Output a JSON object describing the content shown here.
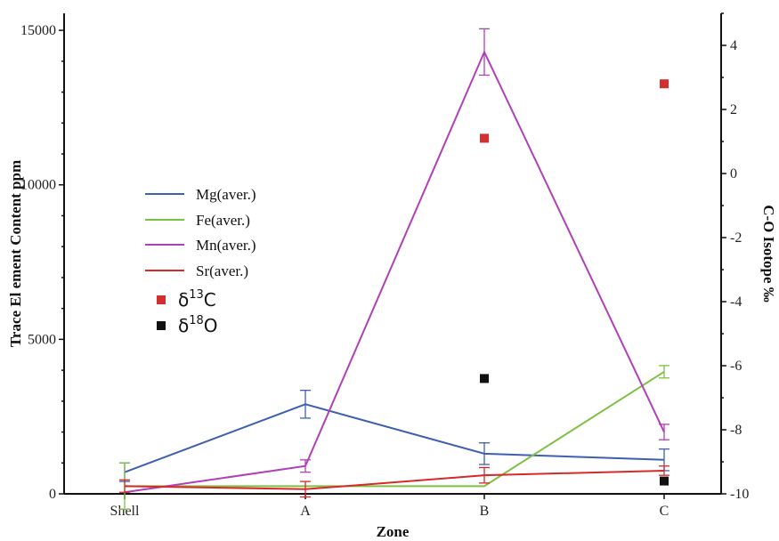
{
  "chart_data": {
    "type": "line",
    "categories": [
      "Shell",
      "A",
      "B",
      "C"
    ],
    "xlabel": "Zone",
    "ylabel": "Trace El ement Content ppm",
    "y2label": "C-O Isotope ‰",
    "ylim": [
      0,
      15000
    ],
    "y2lim": [
      -10,
      5
    ],
    "yticks": [
      "0",
      "5000",
      "10000",
      "15000"
    ],
    "y2ticks": [
      "-10",
      "-8",
      "-6",
      "-4",
      "-2",
      "0",
      "2",
      "4"
    ],
    "legend_position": "left-center",
    "series": [
      {
        "name": "Mg(aver.)",
        "color": "#3f5fb0",
        "values": [
          700,
          2900,
          1300,
          1100
        ],
        "errors": [
          300,
          450,
          350,
          350
        ]
      },
      {
        "name": "Fe(aver.)",
        "color": "#7dc142",
        "values": [
          250,
          250,
          250,
          3950
        ],
        "errors": [
          750,
          0,
          0,
          200
        ]
      },
      {
        "name": "Mn(aver.)",
        "color": "#b040b8",
        "values": [
          50,
          900,
          14300,
          2000
        ],
        "errors": [
          0,
          200,
          750,
          250
        ]
      },
      {
        "name": "Sr(aver.)",
        "color": "#d62a2a",
        "values": [
          250,
          150,
          600,
          750
        ],
        "errors": [
          200,
          250,
          250,
          150
        ]
      }
    ],
    "isotope_series": [
      {
        "legend": {
          "delta": "δ",
          "mass": "13",
          "element": "C"
        },
        "color": "#d32f2f",
        "points": [
          {
            "x": "B",
            "y": 1.1
          },
          {
            "x": "C",
            "y": 2.8
          }
        ]
      },
      {
        "legend": {
          "delta": "δ",
          "mass": "18",
          "element": "O"
        },
        "color": "#111111",
        "points": [
          {
            "x": "B",
            "y": -6.4
          },
          {
            "x": "C",
            "y": -9.6
          }
        ]
      }
    ]
  }
}
